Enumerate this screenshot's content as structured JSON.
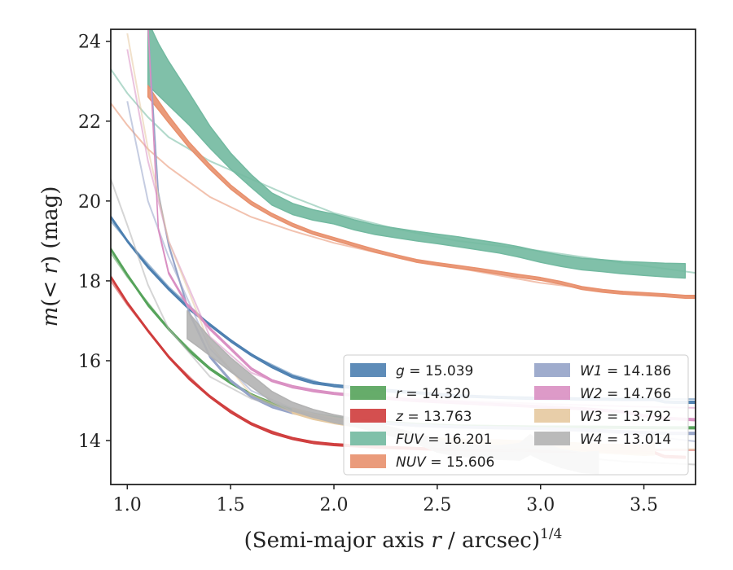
{
  "chart_data": {
    "type": "line",
    "xlabel": "(Semi-major axis r / arcsec)^1/4",
    "xlabel_parts": {
      "main": "(Semi-major axis ",
      "var": "r",
      "rest": " / arcsec)",
      "sup": "1/4"
    },
    "ylabel": "m(< r) (mag)",
    "ylabel_parts": {
      "var": "m",
      "mid": "(< ",
      "var2": "r",
      "rest": ") (mag)"
    },
    "xlim": [
      0.92,
      3.75
    ],
    "ylim": [
      24.3,
      12.9
    ],
    "y_inverted": true,
    "xticks": [
      1.0,
      1.5,
      2.0,
      2.5,
      3.0,
      3.5
    ],
    "xtick_labels": [
      "1.0",
      "1.5",
      "2.0",
      "2.5",
      "3.0",
      "3.5"
    ],
    "yticks": [
      14,
      16,
      18,
      20,
      22,
      24
    ],
    "ytick_labels": [
      "14",
      "16",
      "18",
      "20",
      "22",
      "24"
    ],
    "grid": false,
    "legend_position": "lower-right",
    "series": [
      {
        "name": "g = 15.039",
        "band": "g",
        "value": "15.039",
        "color": "#4c7fb0",
        "obs_x": [
          0.92,
          1.0,
          1.1,
          1.2,
          1.3,
          1.4,
          1.5,
          1.6,
          1.7,
          1.8,
          1.9,
          2.0,
          2.1,
          2.2,
          2.4,
          2.6,
          2.8,
          3.0,
          3.2,
          3.4,
          3.55,
          3.6,
          3.65,
          3.7,
          3.75
        ],
        "obs_y": [
          19.6,
          19.0,
          18.35,
          17.8,
          17.3,
          16.9,
          16.5,
          16.15,
          15.85,
          15.6,
          15.45,
          15.38,
          15.33,
          15.28,
          15.2,
          15.12,
          15.08,
          15.05,
          15.04,
          15.03,
          15.03,
          14.97,
          14.96,
          14.96,
          14.96
        ],
        "obs_w": [
          0.05,
          0.05,
          0.05,
          0.05,
          0.05,
          0.05,
          0.05,
          0.05,
          0.05,
          0.05,
          0.05,
          0.05,
          0.05,
          0.05,
          0.05,
          0.05,
          0.05,
          0.05,
          0.05,
          0.05,
          0.05,
          0.05,
          0.05,
          0.05,
          0.05
        ],
        "model_x": [
          0.92,
          1.0,
          1.2,
          1.4,
          1.6,
          1.8,
          2.0,
          2.3,
          2.6,
          3.0,
          3.4,
          3.75
        ],
        "model_y": [
          19.5,
          19.0,
          17.85,
          16.9,
          16.15,
          15.65,
          15.35,
          15.2,
          15.13,
          15.08,
          15.05,
          15.04
        ]
      },
      {
        "name": "r = 14.320",
        "band": "r",
        "value": "14.320",
        "color": "#55a35a",
        "obs_x": [
          0.92,
          1.0,
          1.1,
          1.2,
          1.3,
          1.4,
          1.5,
          1.6,
          1.7,
          1.8,
          1.9,
          2.0,
          2.1,
          2.2,
          2.4,
          2.6,
          2.8,
          3.0,
          3.2,
          3.4,
          3.6,
          3.75
        ],
        "obs_y": [
          18.8,
          18.15,
          17.4,
          16.8,
          16.25,
          15.8,
          15.45,
          15.15,
          14.92,
          14.75,
          14.65,
          14.58,
          14.52,
          14.47,
          14.4,
          14.36,
          14.35,
          14.34,
          14.34,
          14.33,
          14.32,
          14.32
        ],
        "obs_w": [
          0.05,
          0.05,
          0.05,
          0.05,
          0.05,
          0.05,
          0.05,
          0.05,
          0.05,
          0.05,
          0.05,
          0.05,
          0.05,
          0.05,
          0.05,
          0.05,
          0.05,
          0.05,
          0.05,
          0.05,
          0.05,
          0.05
        ],
        "model_x": [
          0.92,
          1.0,
          1.2,
          1.4,
          1.6,
          1.8,
          2.0,
          2.3,
          2.6,
          3.0,
          3.4,
          3.75
        ],
        "model_y": [
          18.7,
          18.1,
          16.8,
          15.8,
          15.15,
          14.78,
          14.58,
          14.45,
          14.39,
          14.35,
          14.33,
          14.32
        ]
      },
      {
        "name": "z = 13.763",
        "band": "z",
        "value": "13.763",
        "color": "#cf3c3c",
        "obs_x": [
          0.92,
          1.0,
          1.1,
          1.2,
          1.3,
          1.4,
          1.5,
          1.6,
          1.7,
          1.8,
          1.9,
          2.0,
          2.1,
          2.2,
          2.4,
          2.6,
          2.8,
          3.0,
          3.2,
          3.4,
          3.55,
          3.6,
          3.7
        ],
        "obs_y": [
          18.1,
          17.45,
          16.75,
          16.1,
          15.55,
          15.1,
          14.72,
          14.42,
          14.2,
          14.05,
          13.95,
          13.9,
          13.87,
          13.84,
          13.8,
          13.77,
          13.75,
          13.74,
          13.73,
          13.72,
          13.7,
          13.6,
          13.58
        ],
        "obs_w": [
          0.05,
          0.05,
          0.05,
          0.05,
          0.05,
          0.05,
          0.05,
          0.05,
          0.05,
          0.05,
          0.05,
          0.05,
          0.05,
          0.05,
          0.05,
          0.05,
          0.05,
          0.05,
          0.05,
          0.05,
          0.05,
          0.05,
          0.05
        ],
        "model_x": [
          0.92,
          1.0,
          1.2,
          1.4,
          1.6,
          1.8,
          2.0,
          2.3,
          2.6,
          3.0,
          3.4,
          3.75
        ],
        "model_y": [
          18.0,
          17.4,
          16.1,
          15.1,
          14.42,
          14.05,
          13.9,
          13.82,
          13.79,
          13.77,
          13.76,
          13.76
        ]
      },
      {
        "name": "FUV = 16.201",
        "band": "FUV",
        "value": "16.201",
        "color": "#72b9a0",
        "obs_x": [
          1.1,
          1.15,
          1.2,
          1.3,
          1.4,
          1.5,
          1.6,
          1.7,
          1.8,
          1.9,
          2.0,
          2.1,
          2.2,
          2.3,
          2.4,
          2.5,
          2.6,
          2.7,
          2.8,
          2.9,
          3.0,
          3.1,
          3.2,
          3.3,
          3.4,
          3.5,
          3.6,
          3.7
        ],
        "obs_y": [
          23.7,
          23.3,
          22.95,
          22.3,
          21.6,
          21.0,
          20.5,
          20.05,
          19.8,
          19.65,
          19.55,
          19.4,
          19.28,
          19.2,
          19.12,
          19.05,
          18.98,
          18.9,
          18.82,
          18.72,
          18.6,
          18.5,
          18.42,
          18.38,
          18.33,
          18.3,
          18.27,
          18.25
        ],
        "obs_w": [
          1.6,
          1.3,
          1.1,
          0.8,
          0.55,
          0.4,
          0.32,
          0.3,
          0.28,
          0.26,
          0.25,
          0.25,
          0.24,
          0.24,
          0.24,
          0.24,
          0.25,
          0.25,
          0.25,
          0.26,
          0.27,
          0.28,
          0.29,
          0.3,
          0.31,
          0.33,
          0.34,
          0.36
        ],
        "model_x": [
          0.92,
          1.0,
          1.1,
          1.2,
          1.4,
          1.6,
          1.8,
          2.0,
          2.3,
          2.6,
          3.0,
          3.4,
          3.75
        ],
        "model_y": [
          23.3,
          22.7,
          22.1,
          21.6,
          21.0,
          20.55,
          20.1,
          19.7,
          19.3,
          19.0,
          18.75,
          18.45,
          18.2
        ]
      },
      {
        "name": "NUV = 15.606",
        "band": "NUV",
        "value": "15.606",
        "color": "#e8906d",
        "obs_x": [
          1.1,
          1.15,
          1.2,
          1.3,
          1.4,
          1.5,
          1.6,
          1.7,
          1.8,
          1.9,
          2.0,
          2.1,
          2.2,
          2.3,
          2.4,
          2.5,
          2.6,
          2.7,
          2.8,
          2.9,
          3.0,
          3.1,
          3.2,
          3.3,
          3.4,
          3.5,
          3.6,
          3.7,
          3.75
        ],
        "obs_y": [
          22.75,
          22.4,
          22.05,
          21.4,
          20.85,
          20.35,
          19.95,
          19.65,
          19.4,
          19.2,
          19.05,
          18.9,
          18.75,
          18.62,
          18.5,
          18.42,
          18.35,
          18.28,
          18.2,
          18.12,
          18.05,
          17.95,
          17.82,
          17.75,
          17.7,
          17.67,
          17.64,
          17.6,
          17.6
        ],
        "obs_w": [
          0.28,
          0.22,
          0.18,
          0.14,
          0.12,
          0.1,
          0.09,
          0.08,
          0.08,
          0.07,
          0.07,
          0.07,
          0.07,
          0.07,
          0.07,
          0.07,
          0.07,
          0.07,
          0.07,
          0.07,
          0.07,
          0.07,
          0.07,
          0.07,
          0.07,
          0.07,
          0.07,
          0.07,
          0.07
        ],
        "model_x": [
          0.92,
          1.0,
          1.1,
          1.2,
          1.4,
          1.6,
          1.8,
          2.0,
          2.3,
          2.6,
          3.0,
          3.4,
          3.75
        ],
        "model_y": [
          22.45,
          21.9,
          21.3,
          20.85,
          20.1,
          19.6,
          19.25,
          18.95,
          18.6,
          18.32,
          17.95,
          17.7,
          17.6
        ]
      },
      {
        "name": "W1 = 14.186",
        "band": "W1",
        "value": "14.186",
        "color": "#95a3c8",
        "obs_x": [
          1.1,
          1.15,
          1.2,
          1.3,
          1.4,
          1.5,
          1.6,
          1.7,
          1.8,
          1.9,
          2.0,
          2.2,
          2.4,
          2.6,
          2.8,
          3.0,
          3.2,
          3.4,
          3.6,
          3.75
        ],
        "obs_y": [
          24.4,
          20.2,
          18.9,
          17.2,
          16.1,
          15.5,
          15.1,
          14.85,
          14.7,
          14.6,
          14.52,
          14.45,
          14.38,
          14.34,
          14.32,
          14.3,
          14.27,
          14.22,
          14.18,
          14.18
        ],
        "obs_w": [
          0.05,
          0.05,
          0.05,
          0.05,
          0.05,
          0.05,
          0.05,
          0.05,
          0.05,
          0.05,
          0.05,
          0.05,
          0.05,
          0.05,
          0.05,
          0.05,
          0.05,
          0.05,
          0.05,
          0.05
        ],
        "model_x": [
          1.0,
          1.1,
          1.2,
          1.4,
          1.6,
          1.8,
          2.0,
          2.3,
          2.6,
          3.0,
          3.4,
          3.75
        ],
        "model_y": [
          22.5,
          20.0,
          18.6,
          16.3,
          15.25,
          14.8,
          14.58,
          14.43,
          14.35,
          14.28,
          14.18,
          13.98
        ]
      },
      {
        "name": "W2 = 14.766",
        "band": "W2",
        "value": "14.766",
        "color": "#d98fc2",
        "obs_x": [
          1.1,
          1.15,
          1.2,
          1.29,
          1.35,
          1.4,
          1.5,
          1.6,
          1.7,
          1.8,
          1.9,
          2.0,
          2.2,
          2.4,
          2.6,
          2.8,
          3.0,
          3.2,
          3.4,
          3.5,
          3.6,
          3.75
        ],
        "obs_y": [
          24.4,
          19.3,
          18.2,
          17.4,
          17.1,
          16.8,
          16.3,
          15.8,
          15.5,
          15.35,
          15.25,
          15.18,
          15.08,
          15.0,
          14.95,
          14.9,
          14.85,
          14.8,
          14.72,
          14.62,
          14.56,
          14.52
        ],
        "obs_w": [
          0.05,
          0.05,
          0.05,
          0.05,
          0.05,
          0.05,
          0.05,
          0.05,
          0.05,
          0.05,
          0.05,
          0.05,
          0.05,
          0.05,
          0.05,
          0.05,
          0.05,
          0.05,
          0.05,
          0.05,
          0.05,
          0.05
        ],
        "model_x": [
          1.0,
          1.1,
          1.2,
          1.4,
          1.6,
          1.8,
          2.0,
          2.3,
          2.6,
          3.0,
          3.4,
          3.75
        ],
        "model_y": [
          23.8,
          21.0,
          19.0,
          16.6,
          15.7,
          15.32,
          15.18,
          15.08,
          15.0,
          14.92,
          14.86,
          14.82
        ]
      },
      {
        "name": "W3 = 13.792",
        "band": "W3",
        "value": "13.792",
        "color": "#e5c9a0",
        "obs_x": [
          1.8,
          1.9,
          2.0,
          2.1,
          2.2,
          2.3,
          2.4,
          2.5,
          2.6,
          2.7,
          2.8,
          2.9,
          3.0,
          3.1,
          3.2,
          3.3,
          3.4,
          3.5,
          3.55
        ],
        "obs_y": [
          14.75,
          14.6,
          14.5,
          14.42,
          14.33,
          14.2,
          14.05,
          13.98,
          13.95,
          13.93,
          13.92,
          13.9,
          13.88,
          13.86,
          13.83,
          13.8,
          13.78,
          13.76,
          13.8
        ],
        "obs_w": [
          0.14,
          0.14,
          0.15,
          0.15,
          0.15,
          0.16,
          0.17,
          0.18,
          0.18,
          0.18,
          0.19,
          0.19,
          0.2,
          0.2,
          0.21,
          0.22,
          0.24,
          0.26,
          0.32
        ],
        "model_x": [
          1.0,
          1.1,
          1.2,
          1.4,
          1.6,
          1.8,
          2.0,
          2.3,
          2.6,
          3.0,
          3.4,
          3.75
        ],
        "model_y": [
          24.2,
          21.3,
          19.0,
          16.4,
          15.15,
          14.7,
          14.45,
          14.2,
          14.0,
          13.85,
          13.8,
          13.78
        ]
      },
      {
        "name": "W4 = 13.014",
        "band": "W4",
        "value": "13.014",
        "color": "#b2b2b2",
        "obs_x": [
          1.29,
          1.35,
          1.4,
          1.5,
          1.6,
          1.7,
          1.8,
          1.9,
          2.0,
          2.1,
          2.2,
          2.3,
          2.4,
          2.5,
          2.6,
          2.7,
          2.8,
          2.9,
          2.95,
          3.0,
          3.1,
          3.2,
          3.28
        ],
        "obs_y": [
          16.9,
          16.6,
          16.35,
          15.9,
          15.5,
          15.1,
          14.85,
          14.68,
          14.55,
          14.45,
          14.32,
          14.2,
          14.05,
          13.85,
          13.75,
          13.72,
          13.7,
          13.72,
          13.9,
          13.75,
          13.55,
          13.45,
          13.45
        ],
        "obs_w": [
          0.7,
          0.55,
          0.45,
          0.35,
          0.3,
          0.26,
          0.22,
          0.2,
          0.2,
          0.2,
          0.2,
          0.22,
          0.24,
          0.28,
          0.28,
          0.3,
          0.34,
          0.42,
          0.5,
          0.45,
          0.45,
          0.5,
          0.55
        ],
        "model_x": [
          0.92,
          1.0,
          1.1,
          1.2,
          1.4,
          1.6,
          1.8,
          2.0,
          2.3,
          2.6,
          3.0,
          3.4,
          3.75
        ],
        "model_y": [
          20.55,
          19.4,
          17.9,
          16.8,
          15.6,
          15.05,
          14.75,
          14.52,
          14.22,
          13.95,
          13.65,
          13.48,
          13.4
        ]
      }
    ]
  }
}
